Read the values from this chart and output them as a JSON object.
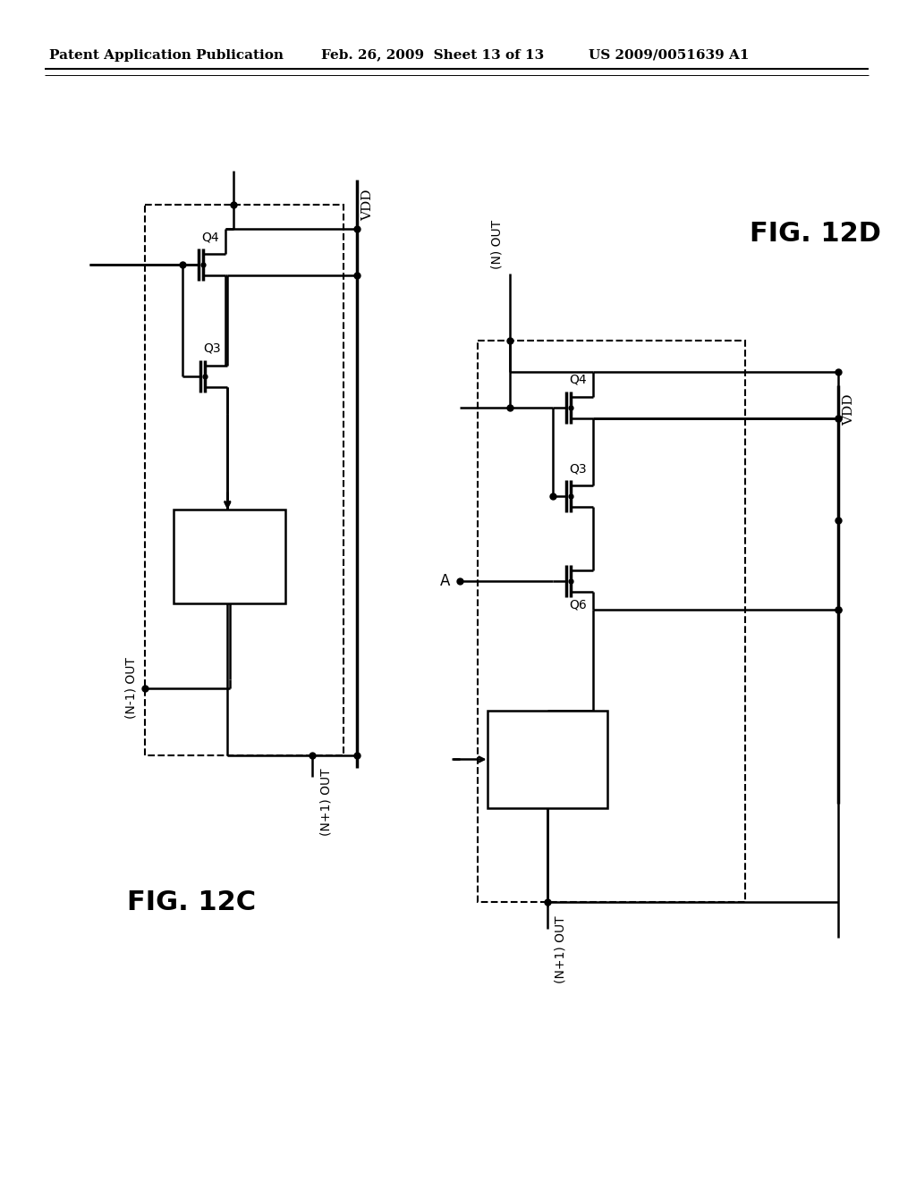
{
  "bg_color": "#ffffff",
  "header_left": "Patent Application Publication",
  "header_mid": "Feb. 26, 2009  Sheet 13 of 13",
  "header_right": "US 2009/0051639 A1",
  "fig12c_label": "FIG. 12C",
  "fig12d_label": "FIG. 12D",
  "fig_width": 10.24,
  "fig_height": 13.2
}
